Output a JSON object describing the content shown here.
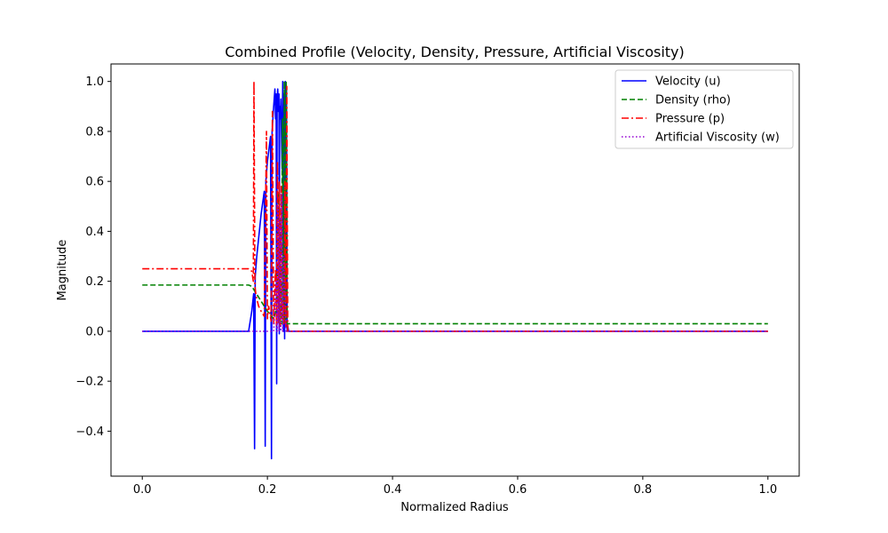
{
  "chart_data": {
    "type": "line",
    "title": "Combined Profile (Velocity, Density, Pressure, Artificial Viscosity)",
    "xlabel": "Normalized Radius",
    "ylabel": "Magnitude",
    "xlim": [
      -0.05,
      1.05
    ],
    "ylim": [
      -0.58,
      1.07
    ],
    "xticks": [
      0.0,
      0.2,
      0.4,
      0.6,
      0.8,
      1.0
    ],
    "xtick_labels": [
      "0.0",
      "0.2",
      "0.4",
      "0.6",
      "0.8",
      "1.0"
    ],
    "yticks": [
      -0.4,
      -0.2,
      0.0,
      0.2,
      0.4,
      0.6,
      0.8,
      1.0
    ],
    "ytick_labels": [
      "−0.4",
      "−0.2",
      "0.0",
      "0.2",
      "0.4",
      "0.6",
      "0.8",
      "1.0"
    ],
    "grid": false,
    "legend_position": "top-right",
    "series": [
      {
        "name": "Velocity (u)",
        "color": "#0000ff",
        "dash": "solid",
        "x": [
          0.0,
          0.17,
          0.175,
          0.178,
          0.1795,
          0.1805,
          0.183,
          0.19,
          0.195,
          0.1965,
          0.1975,
          0.2,
          0.205,
          0.2065,
          0.2075,
          0.21,
          0.212,
          0.213,
          0.214,
          0.2148,
          0.2155,
          0.2165,
          0.2175,
          0.2185,
          0.219,
          0.2195,
          0.2205,
          0.2215,
          0.2225,
          0.2235,
          0.2245,
          0.2255,
          0.2265,
          0.2275,
          0.2285,
          0.2295,
          0.2305,
          0.2315,
          0.2325,
          0.234,
          0.26,
          1.0
        ],
        "y": [
          0.0,
          0.0,
          0.08,
          0.15,
          -0.47,
          0.22,
          0.3,
          0.47,
          0.56,
          -0.46,
          0.6,
          0.68,
          0.78,
          -0.51,
          0.8,
          0.9,
          0.97,
          0.85,
          0.95,
          -0.21,
          0.92,
          0.97,
          0.88,
          0.95,
          -0.01,
          0.9,
          0.85,
          0.93,
          0.78,
          0.65,
          1.0,
          0.0,
          0.95,
          -0.03,
          1.0,
          0.05,
          0.98,
          0.0,
          0.02,
          0.0,
          0.0,
          0.0
        ]
      },
      {
        "name": "Density (rho)",
        "color": "#008000",
        "dash": "dashed",
        "x": [
          0.0,
          0.17,
          0.175,
          0.18,
          0.19,
          0.2,
          0.21,
          0.215,
          0.218,
          0.2195,
          0.221,
          0.2225,
          0.224,
          0.2255,
          0.227,
          0.2285,
          0.23,
          0.2315,
          0.233,
          1.0
        ],
        "y": [
          0.185,
          0.185,
          0.18,
          0.16,
          0.12,
          0.08,
          0.05,
          0.1,
          0.55,
          0.02,
          0.45,
          0.03,
          0.85,
          0.03,
          1.0,
          0.04,
          1.0,
          0.03,
          0.03,
          0.03
        ]
      },
      {
        "name": "Pressure (p)",
        "color": "#ff0000",
        "dash": "dashdot",
        "x": [
          0.0,
          0.17,
          0.175,
          0.1775,
          0.1785,
          0.18,
          0.182,
          0.186,
          0.19,
          0.195,
          0.1985,
          0.2,
          0.202,
          0.206,
          0.208,
          0.21,
          0.213,
          0.2145,
          0.216,
          0.2175,
          0.219,
          0.2205,
          0.222,
          0.2235,
          0.225,
          0.2265,
          0.228,
          0.2295,
          0.231,
          0.2325,
          0.235,
          1.0
        ],
        "y": [
          0.25,
          0.25,
          0.24,
          0.2,
          1.0,
          0.18,
          0.14,
          0.1,
          0.08,
          0.06,
          0.8,
          0.05,
          0.1,
          0.04,
          0.88,
          0.03,
          0.25,
          0.02,
          0.68,
          0.03,
          0.6,
          0.02,
          0.58,
          0.05,
          0.12,
          0.03,
          0.6,
          0.02,
          0.98,
          0.0,
          0.0,
          0.0
        ]
      },
      {
        "name": "Artificial Viscosity (w)",
        "color": "#9400d3",
        "dash": "dotted",
        "x": [
          0.0,
          0.2,
          0.21,
          0.214,
          0.2155,
          0.217,
          0.2185,
          0.22,
          0.2215,
          0.223,
          0.2245,
          0.226,
          0.23,
          1.0
        ],
        "y": [
          0.0,
          0.0,
          0.0,
          0.2,
          0.0,
          0.5,
          0.0,
          0.45,
          0.0,
          0.55,
          0.0,
          0.3,
          0.0,
          0.0
        ]
      }
    ]
  }
}
